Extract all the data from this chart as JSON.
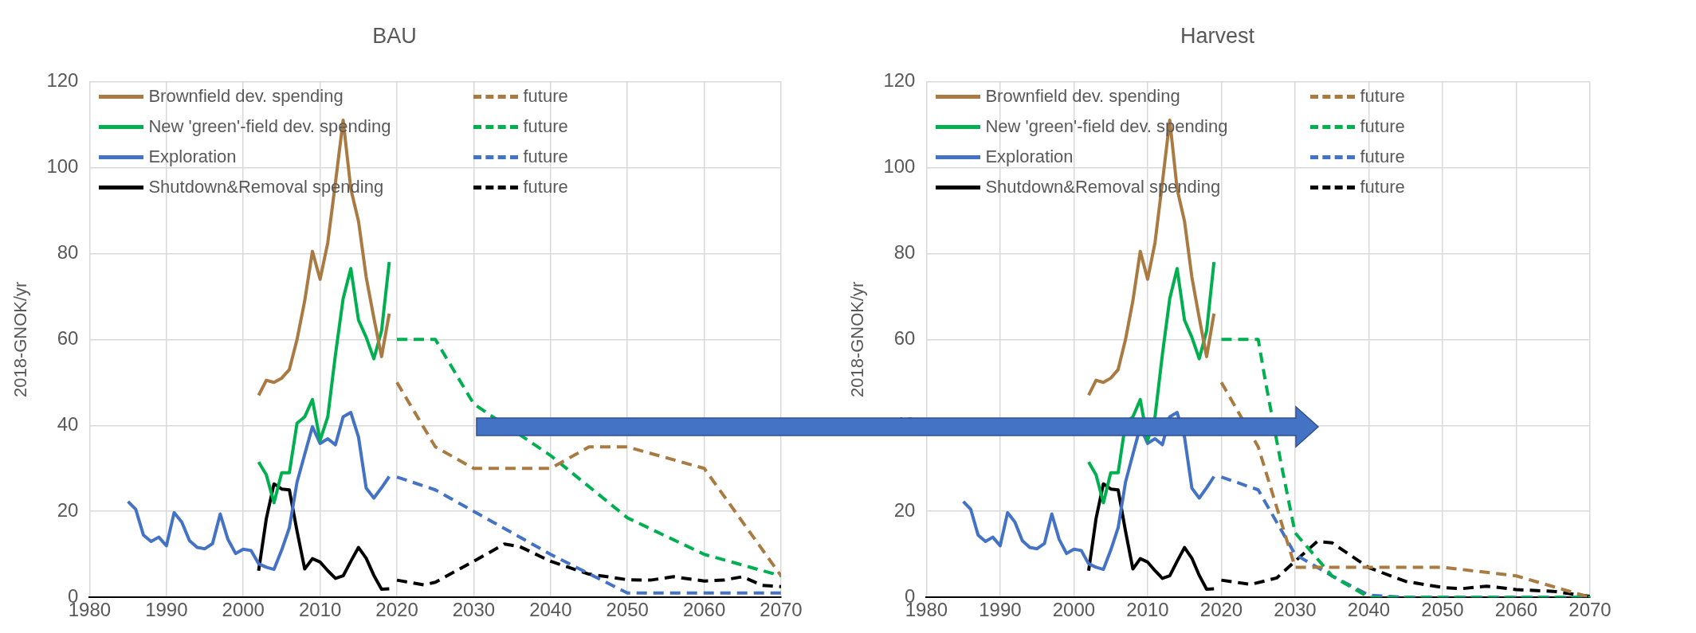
{
  "chart_data": [
    {
      "type": "line",
      "title": "BAU",
      "ylabel": "2018-GNOK/yr",
      "xlim": [
        1980,
        2070
      ],
      "xticks": [
        1980,
        1990,
        2000,
        2010,
        2020,
        2030,
        2040,
        2050,
        2060,
        2070
      ],
      "ylim": [
        0,
        120
      ],
      "yticks": [
        0,
        20,
        40,
        60,
        80,
        100,
        120
      ],
      "grid": true,
      "legend": "top left",
      "series": [
        {
          "name": "Brownfield dev. spending",
          "color": "#a97a41",
          "line_style": "solid",
          "x": [
            2002,
            2003,
            2004,
            2005,
            2006,
            2007,
            2008,
            2009,
            2010,
            2011,
            2012,
            2013,
            2014,
            2015,
            2016,
            2017,
            2018,
            2019
          ],
          "values": [
            47,
            50.5,
            50,
            51,
            53,
            60,
            69,
            80.5,
            74,
            82.5,
            96.5,
            111,
            95,
            87.5,
            74.5,
            65,
            56,
            66
          ]
        },
        {
          "name": "future",
          "color": "#a97a41",
          "line_style": "dashed",
          "x": [
            2020,
            2025,
            2030,
            2040,
            2045,
            2050,
            2060,
            2070
          ],
          "values": [
            50,
            35,
            30,
            30,
            35,
            35,
            30,
            5
          ]
        },
        {
          "name": "New 'green'-field dev. spending",
          "color": "#00b050",
          "line_style": "solid",
          "x": [
            2002,
            2003,
            2004,
            2005,
            2006,
            2007,
            2008,
            2009,
            2010,
            2011,
            2012,
            2013,
            2014,
            2015,
            2016,
            2017,
            2018,
            2019
          ],
          "values": [
            31.5,
            28.5,
            22,
            29,
            29,
            40.5,
            42,
            46,
            36.5,
            42,
            56.5,
            69.5,
            76.5,
            64.5,
            60.5,
            55.5,
            62,
            78
          ]
        },
        {
          "name": "future",
          "color": "#00b050",
          "line_style": "dashed",
          "x": [
            2020,
            2025,
            2030,
            2040,
            2050,
            2060,
            2070
          ],
          "values": [
            60,
            60,
            45,
            33,
            18.5,
            10,
            5
          ]
        },
        {
          "name": "Exploration",
          "color": "#4472c4",
          "line_style": "solid",
          "x": [
            1985,
            1986,
            1987,
            1988,
            1989,
            1990,
            1991,
            1992,
            1993,
            1994,
            1995,
            1996,
            1997,
            1998,
            1999,
            2000,
            2001,
            2002,
            2003,
            2004,
            2005,
            2006,
            2007,
            2008,
            2009,
            2010,
            2011,
            2012,
            2013,
            2014,
            2015,
            2016,
            2017,
            2018,
            2019
          ],
          "values": [
            22.3,
            20.5,
            14.5,
            13,
            14,
            12,
            19.7,
            17.5,
            13.2,
            11.6,
            11.3,
            12.5,
            19.4,
            13.5,
            10.2,
            11.2,
            10.9,
            7.8,
            7,
            6.5,
            11,
            16.2,
            26.8,
            33.3,
            39.7,
            35.8,
            36.9,
            35.5,
            42,
            43,
            37.3,
            25.4,
            23.1,
            25.5,
            28.1
          ]
        },
        {
          "name": "future",
          "color": "#4472c4",
          "line_style": "dashed",
          "x": [
            2020,
            2025,
            2030,
            2040,
            2050,
            2070
          ],
          "values": [
            28,
            25,
            20,
            10,
            1,
            1
          ]
        },
        {
          "name": "Shutdown&Removal spending",
          "color": "#000000",
          "line_style": "solid",
          "x": [
            2002,
            2003,
            2004,
            2005,
            2006,
            2007,
            2008,
            2009,
            2010,
            2011,
            2012,
            2013,
            2014,
            2015,
            2016,
            2017,
            2018,
            2019
          ],
          "values": [
            6.2,
            18.3,
            26.4,
            25.2,
            25,
            15.4,
            6.6,
            9,
            8.2,
            6.2,
            4.4,
            5,
            8.4,
            11.6,
            9.1,
            5.1,
            1.9,
            2
          ]
        },
        {
          "name": "future",
          "color": "#000000",
          "line_style": "dashed",
          "x": [
            2020,
            2023.5,
            2025,
            2030,
            2034,
            2036,
            2040,
            2045,
            2050,
            2053,
            2056,
            2060,
            2062.5,
            2065,
            2067.5,
            2070
          ],
          "values": [
            4,
            2.9,
            3.5,
            8.4,
            12.4,
            11.8,
            8.4,
            5.4,
            4.1,
            4,
            4.8,
            3.8,
            4,
            4.8,
            2.8,
            2.5
          ]
        }
      ]
    },
    {
      "type": "line",
      "title": "Harvest",
      "ylabel": "2018-GNOK/yr",
      "xlim": [
        1980,
        2070
      ],
      "xticks": [
        1980,
        1990,
        2000,
        2010,
        2020,
        2030,
        2040,
        2050,
        2060,
        2070
      ],
      "ylim": [
        0,
        120
      ],
      "yticks": [
        0,
        20,
        40,
        60,
        80,
        100,
        120
      ],
      "grid": true,
      "legend": "top left",
      "series": [
        {
          "name": "Brownfield dev. spending",
          "color": "#a97a41",
          "line_style": "solid",
          "x": [
            2002,
            2003,
            2004,
            2005,
            2006,
            2007,
            2008,
            2009,
            2010,
            2011,
            2012,
            2013,
            2014,
            2015,
            2016,
            2017,
            2018,
            2019
          ],
          "values": [
            47,
            50.5,
            50,
            51,
            53,
            60,
            69,
            80.5,
            74,
            82.5,
            96.5,
            111,
            95,
            87.5,
            74.5,
            65,
            56,
            66
          ]
        },
        {
          "name": "future",
          "color": "#a97a41",
          "line_style": "dashed",
          "x": [
            2020,
            2025,
            2030,
            2050,
            2060,
            2070
          ],
          "values": [
            50,
            35,
            7,
            7,
            5,
            0
          ]
        },
        {
          "name": "New 'green'-field dev. spending",
          "color": "#00b050",
          "line_style": "solid",
          "x": [
            2002,
            2003,
            2004,
            2005,
            2006,
            2007,
            2008,
            2009,
            2010,
            2011,
            2012,
            2013,
            2014,
            2015,
            2016,
            2017,
            2018,
            2019
          ],
          "values": [
            31.5,
            28.5,
            22,
            29,
            29,
            40.5,
            42,
            46,
            36.5,
            42,
            56.5,
            69.5,
            76.5,
            64.5,
            60.5,
            55.5,
            62,
            78
          ]
        },
        {
          "name": "future",
          "color": "#00b050",
          "line_style": "dashed",
          "x": [
            2020,
            2025,
            2026,
            2028,
            2030,
            2035,
            2040,
            2070
          ],
          "values": [
            60,
            60,
            50,
            32,
            15,
            5,
            0,
            0
          ]
        },
        {
          "name": "Exploration",
          "color": "#4472c4",
          "line_style": "solid",
          "x": [
            1985,
            1986,
            1987,
            1988,
            1989,
            1990,
            1991,
            1992,
            1993,
            1994,
            1995,
            1996,
            1997,
            1998,
            1999,
            2000,
            2001,
            2002,
            2003,
            2004,
            2005,
            2006,
            2007,
            2008,
            2009,
            2010,
            2011,
            2012,
            2013,
            2014,
            2015,
            2016,
            2017,
            2018,
            2019
          ],
          "values": [
            22.3,
            20.5,
            14.5,
            13,
            14,
            12,
            19.7,
            17.5,
            13.2,
            11.6,
            11.3,
            12.5,
            19.4,
            13.5,
            10.2,
            11.2,
            10.9,
            7.8,
            7,
            6.5,
            11,
            16.2,
            26.8,
            33.3,
            39.7,
            35.8,
            36.9,
            35.5,
            42,
            43,
            37.3,
            25.4,
            23.1,
            25.5,
            28.1
          ]
        },
        {
          "name": "future",
          "color": "#4472c4",
          "line_style": "dashed",
          "x": [
            2020,
            2025,
            2030,
            2035,
            2040,
            2045,
            2070
          ],
          "values": [
            28,
            25,
            10,
            5,
            0.5,
            0,
            0
          ]
        },
        {
          "name": "Shutdown&Removal spending",
          "color": "#000000",
          "line_style": "solid",
          "x": [
            2002,
            2003,
            2004,
            2005,
            2006,
            2007,
            2008,
            2009,
            2010,
            2011,
            2012,
            2013,
            2014,
            2015,
            2016,
            2017,
            2018,
            2019
          ],
          "values": [
            6.2,
            18.3,
            26.4,
            25.2,
            25,
            15.4,
            6.6,
            9,
            8.2,
            6.2,
            4.4,
            5,
            8.4,
            11.6,
            9.1,
            5.1,
            1.9,
            2
          ]
        },
        {
          "name": "future",
          "color": "#000000",
          "line_style": "dashed",
          "x": [
            2020,
            2024,
            2027.5,
            2030,
            2033,
            2035,
            2040,
            2045,
            2050,
            2052.5,
            2056,
            2060,
            2065,
            2070
          ],
          "values": [
            4,
            3,
            4.5,
            8.4,
            13,
            12.7,
            6.9,
            3.7,
            2.3,
            2,
            2.6,
            1.8,
            1.4,
            0.2
          ]
        }
      ]
    }
  ]
}
